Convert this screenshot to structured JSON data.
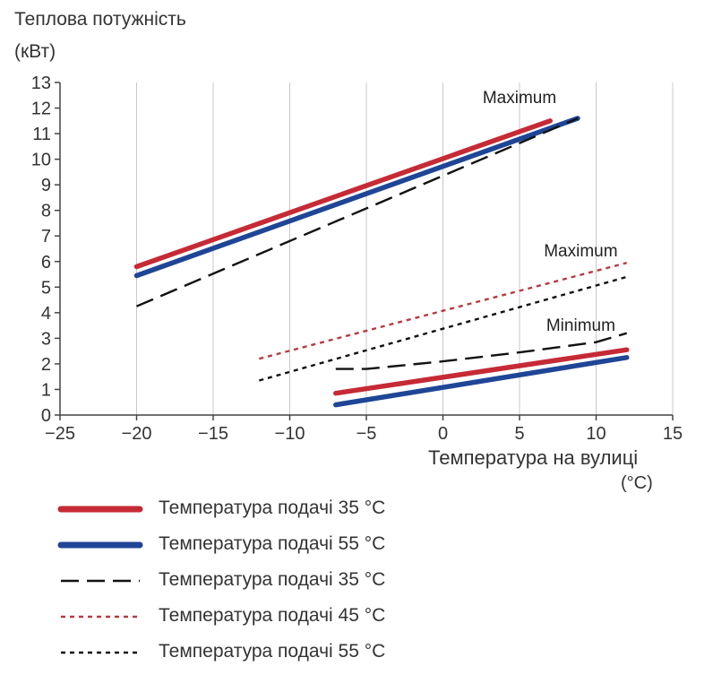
{
  "chart_data": {
    "type": "line",
    "ylabel_line1": "Теплова потужність",
    "ylabel_line2": "(кВт)",
    "xlabel_line1": "Температура на вулиці",
    "xlabel_line2": "(°C)",
    "xlim": [
      -25,
      15
    ],
    "ylim": [
      0,
      13
    ],
    "xticks": [
      -25,
      -20,
      -15,
      -10,
      -5,
      0,
      5,
      10,
      15
    ],
    "yticks": [
      0,
      1,
      2,
      3,
      4,
      5,
      6,
      7,
      8,
      9,
      10,
      11,
      12,
      13
    ],
    "grid": "vertical",
    "annotations": [
      {
        "text": "Maximum",
        "x": 5,
        "y": 12.2
      },
      {
        "text": "Maximum",
        "x": 9,
        "y": 6.2
      },
      {
        "text": "Minimum",
        "x": 9,
        "y": 3.3
      }
    ],
    "series": [
      {
        "name": "Температура подачі 35 °C",
        "style": "thick",
        "color": "#c62a35",
        "x": [
          -20,
          7
        ],
        "y": [
          5.8,
          11.5
        ]
      },
      {
        "name": "Температура подачі 55 °C",
        "style": "thick",
        "color": "#1f4596",
        "x": [
          -20,
          8.8
        ],
        "y": [
          5.45,
          11.6
        ]
      },
      {
        "name": "Температура подачі 35 °C",
        "style": "dashed",
        "color": "#111111",
        "x": [
          -20,
          8.8
        ],
        "y": [
          4.25,
          11.6
        ]
      },
      {
        "name": "Температура подачі 45 °C",
        "style": "dotted",
        "color": "#b83a42",
        "x": [
          -12,
          12
        ],
        "y": [
          2.2,
          5.95
        ]
      },
      {
        "name": "Температура подачі 55 °C",
        "style": "dotted",
        "color": "#111111",
        "x": [
          -12,
          12
        ],
        "y": [
          1.35,
          5.4
        ]
      },
      {
        "name": "Температура подачі 35 °C",
        "style": "thick",
        "color": "#c62a35",
        "x": [
          -7,
          12
        ],
        "y": [
          0.85,
          2.55
        ]
      },
      {
        "name": "Температура подачі 55 °C",
        "style": "thick",
        "color": "#1f4596",
        "x": [
          -7,
          12
        ],
        "y": [
          0.4,
          2.25
        ]
      },
      {
        "name": "Температура подачі 35 °C",
        "style": "dashed",
        "color": "#111111",
        "x": [
          -7,
          -5,
          0,
          5,
          10,
          12
        ],
        "y": [
          1.8,
          1.8,
          2.1,
          2.45,
          2.85,
          3.2
        ]
      }
    ]
  },
  "legend": [
    {
      "label": "Температура подачі 35 °C",
      "style": "thick",
      "color": "#c62a35"
    },
    {
      "label": "Температура подачі 55 °C",
      "style": "thick",
      "color": "#1f4596"
    },
    {
      "label": "Температура подачі 35 °C",
      "style": "dashed",
      "color": "#111111"
    },
    {
      "label": "Температура подачі 45 °C",
      "style": "dotted",
      "color": "#b83a42"
    },
    {
      "label": "Температура подачі 55 °C",
      "style": "dotted",
      "color": "#111111"
    }
  ]
}
